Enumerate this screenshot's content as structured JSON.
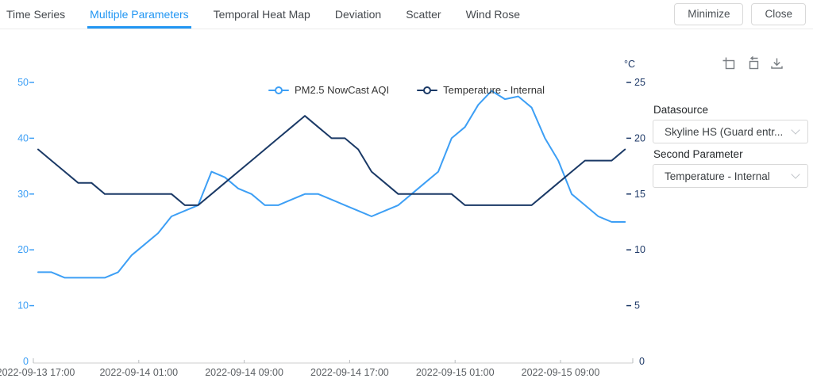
{
  "tabs": {
    "items": [
      {
        "label": "Time Series",
        "active": false
      },
      {
        "label": "Multiple Parameters",
        "active": true
      },
      {
        "label": "Temporal Heat Map",
        "active": false
      },
      {
        "label": "Deviation",
        "active": false
      },
      {
        "label": "Scatter",
        "active": false
      },
      {
        "label": "Wind Rose",
        "active": false
      }
    ]
  },
  "window_buttons": {
    "minimize": "Minimize",
    "close": "Close"
  },
  "toolbox": {
    "icon_color": "#787d82",
    "icons": [
      "box-zoom-icon",
      "zoom-reset-icon",
      "download-icon"
    ]
  },
  "panel": {
    "datasource_label": "Datasource",
    "datasource_value": "Skyline HS (Guard entr...",
    "second_parameter_label": "Second Parameter",
    "second_parameter_value": "Temperature - Internal"
  },
  "colors": {
    "accent_blue": "#2196f3",
    "axis_line": "#cccccc",
    "x_label_gray": "#5a5e62"
  },
  "chart_data": {
    "type": "line",
    "title": "",
    "grid": false,
    "legend_position": "top-center",
    "x": {
      "start": "2022-09-13 18:00",
      "interval_hours": 1,
      "points": 45,
      "tick_labels": [
        "2022-09-13 17:00",
        "2022-09-14 01:00",
        "2022-09-14 09:00",
        "2022-09-14 17:00",
        "2022-09-15 01:00",
        "2022-09-15 09:00"
      ]
    },
    "y_left": {
      "title": "",
      "ticks": [
        0,
        10,
        20,
        30,
        40,
        50
      ],
      "range": [
        0,
        50
      ],
      "color": "#3d9ff5"
    },
    "y_right": {
      "title": "°C",
      "ticks": [
        0,
        5,
        10,
        15,
        20,
        25
      ],
      "range": [
        0,
        25
      ],
      "color": "#1f3a68"
    },
    "series": [
      {
        "name": "PM2.5 NowCast AQI",
        "axis": "left",
        "color": "#3d9ff5",
        "values": [
          16,
          16,
          15,
          15,
          15,
          15,
          16,
          19,
          21,
          23,
          26,
          27,
          28,
          34,
          33,
          31,
          30,
          28,
          28,
          29,
          30,
          30,
          29,
          28,
          27,
          26,
          27,
          28,
          30,
          32,
          34,
          40,
          42,
          46,
          48.5,
          47,
          47.5,
          45.5,
          40,
          36,
          30,
          28,
          26,
          25,
          25
        ]
      },
      {
        "name": "Temperature - Internal",
        "axis": "right",
        "color": "#1a3966",
        "values": [
          19,
          18,
          17,
          16,
          16,
          15,
          15,
          15,
          15,
          15,
          15,
          14,
          14,
          15,
          16,
          17,
          18,
          19,
          20,
          21,
          22,
          21,
          20,
          20,
          19,
          17,
          16,
          15,
          15,
          15,
          15,
          15,
          14,
          14,
          14,
          14,
          14,
          14,
          15,
          16,
          17,
          18,
          18,
          18,
          19
        ]
      }
    ]
  }
}
